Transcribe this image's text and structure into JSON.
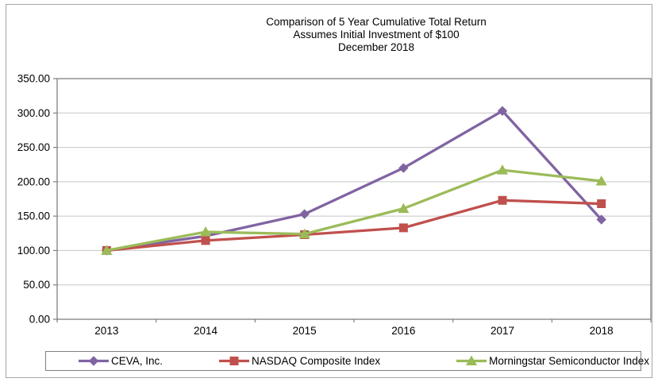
{
  "title": {
    "line1": "Comparison of 5 Year Cumulative Total Return",
    "line2": "Assumes Initial Investment of $100",
    "line3": "December 2018"
  },
  "chart_data": {
    "type": "line",
    "title": "Comparison of 5 Year Cumulative Total Return Assumes Initial Investment of $100 December 2018",
    "categories": [
      "2013",
      "2014",
      "2015",
      "2016",
      "2017",
      "2018"
    ],
    "series": [
      {
        "name": "CEVA, Inc.",
        "marker": "diamond",
        "color": "#8064A2",
        "values": [
          100.0,
          121.0,
          153.0,
          220.0,
          303.0,
          145.0
        ]
      },
      {
        "name": "NASDAQ Composite Index",
        "marker": "square",
        "color": "#C0504D",
        "values": [
          100.0,
          114.5,
          123.0,
          133.0,
          173.0,
          168.0
        ]
      },
      {
        "name": "Morningstar Semiconductor Index",
        "marker": "triangle",
        "color": "#9BBB59",
        "values": [
          100.0,
          127.0,
          124.0,
          161.0,
          217.0,
          201.0
        ]
      }
    ],
    "xlabel": "",
    "ylabel": "",
    "ylim": [
      0,
      350
    ],
    "ytick_step": 50,
    "ytick_labels": [
      "0.00",
      "50.00",
      "100.00",
      "150.00",
      "200.00",
      "250.00",
      "300.00",
      "350.00"
    ],
    "grid": true,
    "legend_position": "bottom"
  },
  "colors": {
    "gridline": "#c6c6c6",
    "axis": "#7f7f7f",
    "text": "#000000",
    "frame": "#a6a6a6"
  }
}
